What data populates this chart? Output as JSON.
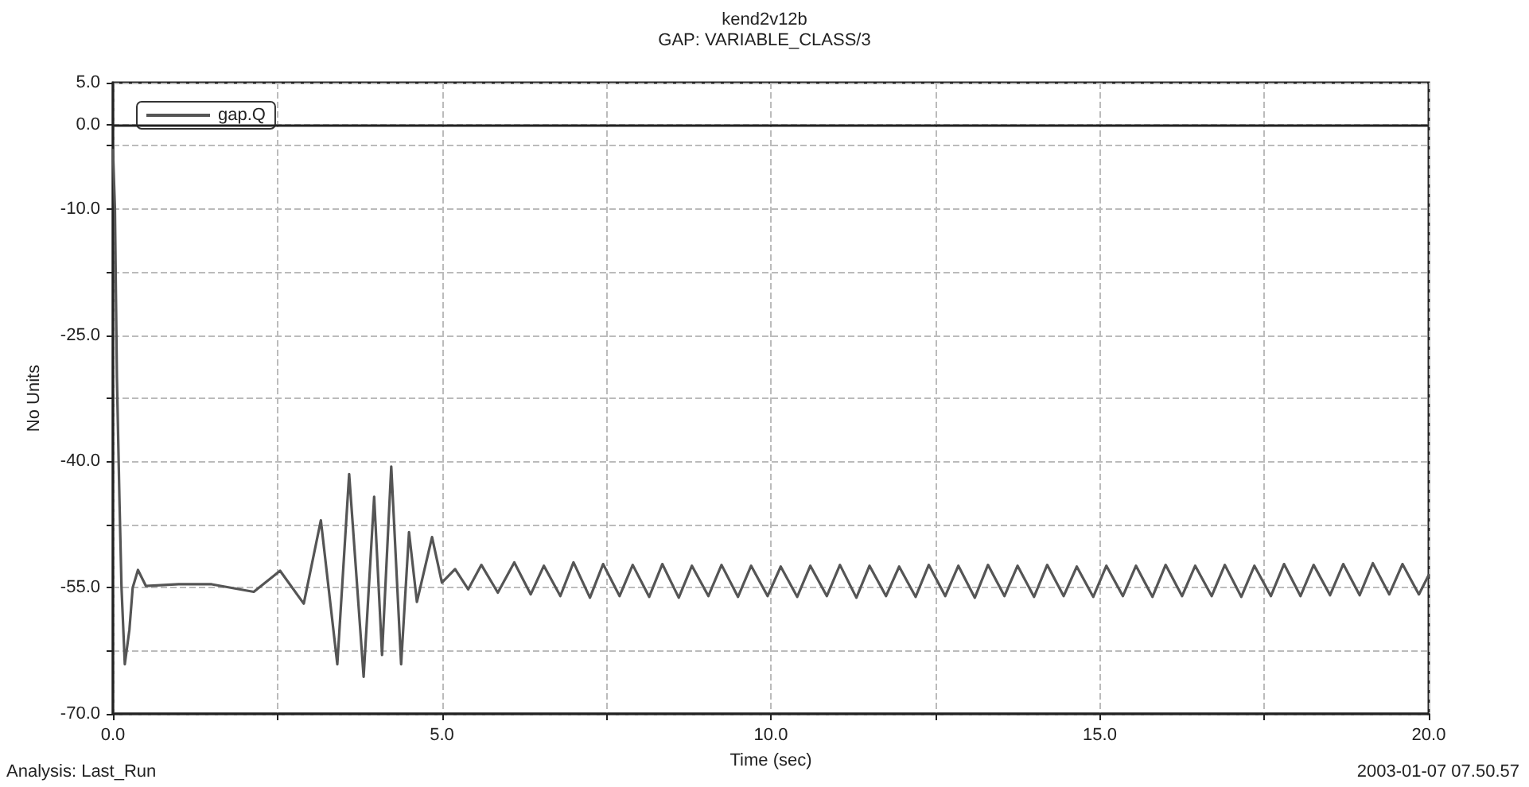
{
  "chart_data": {
    "type": "line",
    "title": "kend2v12b",
    "subtitle": "GAP: VARIABLE_CLASS/3",
    "xlabel": "Time (sec)",
    "ylabel": "No Units",
    "annotations": [
      "Analysis: Last_Run",
      "2003-01-07 07.50.57"
    ],
    "xlim": [
      0,
      20
    ],
    "ylim": [
      -70,
      5
    ],
    "xticks": [
      {
        "value": 0,
        "label": "0.0"
      },
      {
        "value": 2.5,
        "label": null
      },
      {
        "value": 5,
        "label": "5.0"
      },
      {
        "value": 7.5,
        "label": null
      },
      {
        "value": 10,
        "label": "10.0"
      },
      {
        "value": 12.5,
        "label": null
      },
      {
        "value": 15,
        "label": "15.0"
      },
      {
        "value": 17.5,
        "label": null
      },
      {
        "value": 20,
        "label": "20.0"
      }
    ],
    "yticks": [
      {
        "value": 5,
        "label": "5.0"
      },
      {
        "value": 0,
        "label": "0.0"
      },
      {
        "value": -2.5,
        "label": null
      },
      {
        "value": -10,
        "label": "-10.0"
      },
      {
        "value": -17.5,
        "label": null
      },
      {
        "value": -25,
        "label": "-25.0"
      },
      {
        "value": -32.5,
        "label": null
      },
      {
        "value": -40,
        "label": "-40.0"
      },
      {
        "value": -47.5,
        "label": null
      },
      {
        "value": -55,
        "label": "-55.0"
      },
      {
        "value": -62.5,
        "label": null
      },
      {
        "value": -70,
        "label": "-70.0"
      }
    ],
    "grid": true,
    "legend": "top left",
    "marker": "none",
    "line_style": "solid",
    "ref_lines": [
      {
        "axis": "y",
        "value": 0,
        "label": null,
        "color": "#222222"
      }
    ],
    "series": [
      {
        "name": "gap.Q",
        "color": "#555555",
        "x": [
          0,
          0.03,
          0.06,
          0.1,
          0.13,
          0.18,
          0.25,
          0.3,
          0.38,
          0.5,
          1.0,
          1.5,
          2.14,
          2.54,
          2.9,
          3.16,
          3.41,
          3.59,
          3.81,
          3.97,
          4.09,
          4.23,
          4.38,
          4.5,
          4.62,
          4.85,
          5.0,
          5.2,
          5.4,
          5.6,
          5.85,
          6.1,
          6.35,
          6.55,
          6.8,
          7.0,
          7.25,
          7.45,
          7.7,
          7.9,
          8.15,
          8.35,
          8.6,
          8.8,
          9.05,
          9.25,
          9.5,
          9.7,
          9.95,
          10.15,
          10.4,
          10.6,
          10.85,
          11.05,
          11.3,
          11.5,
          11.75,
          11.95,
          12.2,
          12.4,
          12.65,
          12.85,
          13.1,
          13.3,
          13.55,
          13.75,
          14.0,
          14.2,
          14.45,
          14.65,
          14.9,
          15.1,
          15.35,
          15.55,
          15.8,
          16.0,
          16.25,
          16.45,
          16.7,
          16.9,
          17.15,
          17.35,
          17.6,
          17.8,
          18.05,
          18.25,
          18.5,
          18.7,
          18.95,
          19.15,
          19.4,
          19.6,
          19.85,
          20.0
        ],
        "values": [
          -3,
          -10,
          -30,
          -45,
          -55,
          -64.1,
          -60,
          -55,
          -52.9,
          -54.8,
          -54.6,
          -54.6,
          -55.5,
          -53,
          -56.9,
          -47,
          -64.1,
          -41.5,
          -65.6,
          -44.2,
          -63,
          -40.6,
          -64.1,
          -48.4,
          -56.7,
          -49,
          -54.4,
          -52.8,
          -55.2,
          -52.3,
          -55.6,
          -52.0,
          -55.8,
          -52.4,
          -56.0,
          -52.0,
          -56.2,
          -52.2,
          -56.0,
          -52.3,
          -56.1,
          -52.2,
          -56.2,
          -52.4,
          -56.0,
          -52.3,
          -56.1,
          -52.4,
          -56.0,
          -52.5,
          -56.1,
          -52.4,
          -56.0,
          -52.3,
          -56.2,
          -52.4,
          -56.0,
          -52.5,
          -56.1,
          -52.3,
          -56.0,
          -52.4,
          -56.2,
          -52.3,
          -56.0,
          -52.4,
          -56.1,
          -52.3,
          -56.0,
          -52.5,
          -56.1,
          -52.4,
          -56.0,
          -52.4,
          -56.1,
          -52.3,
          -56.0,
          -52.4,
          -56.0,
          -52.3,
          -56.1,
          -52.4,
          -56.0,
          -52.2,
          -56.0,
          -52.3,
          -55.9,
          -52.2,
          -55.9,
          -52.1,
          -55.8,
          -52.2,
          -55.8,
          -53.5
        ]
      }
    ]
  }
}
